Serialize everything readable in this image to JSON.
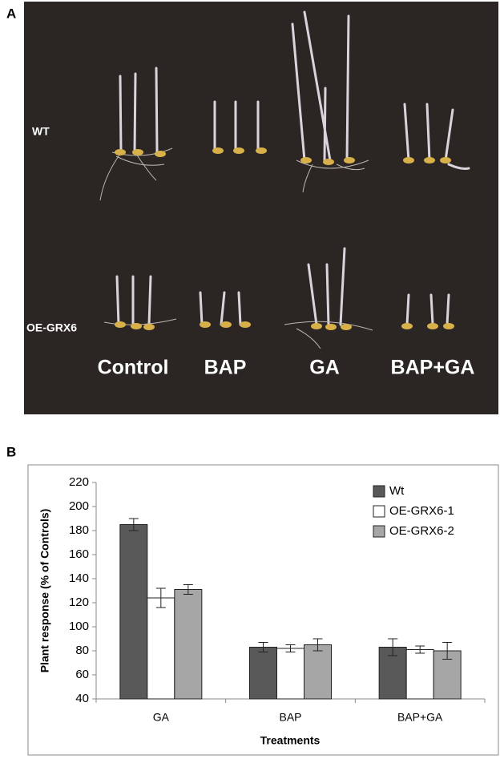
{
  "panel_a": {
    "label": "A",
    "rows": [
      "WT",
      "OE-GRX6"
    ],
    "columns": [
      "Control",
      "BAP",
      "GA",
      "BAP+GA"
    ]
  },
  "chart_data": {
    "type": "bar",
    "panel_label": "B",
    "y_label": "Plant response (% of Controls)",
    "x_label": "Treatments",
    "categories": [
      "GA",
      "BAP",
      "BAP+GA"
    ],
    "series": [
      {
        "name": "Wt",
        "color": "#595959",
        "values": [
          185,
          83,
          83
        ],
        "errors": [
          5,
          4,
          7
        ]
      },
      {
        "name": "OE-GRX6-1",
        "color": "#ffffff",
        "values": [
          124,
          82,
          81
        ],
        "errors": [
          8,
          3,
          3
        ]
      },
      {
        "name": "OE-GRX6-2",
        "color": "#a6a6a6",
        "values": [
          131,
          85,
          80
        ],
        "errors": [
          4,
          5,
          7
        ]
      }
    ],
    "ylim": [
      40,
      220
    ],
    "yticks": [
      40,
      60,
      80,
      100,
      120,
      140,
      160,
      180,
      200,
      220
    ],
    "legend": "top-right"
  }
}
